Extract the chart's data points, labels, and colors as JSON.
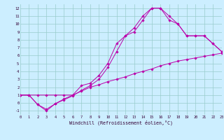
{
  "xlabel": "Windchill (Refroidissement éolien,°C)",
  "line1_x": [
    0,
    1,
    2,
    3,
    4,
    5,
    6,
    7,
    8,
    9,
    10,
    11,
    12,
    13,
    14,
    15,
    16,
    17,
    18,
    19,
    20,
    21,
    22,
    23
  ],
  "line1_y": [
    1,
    1,
    1,
    1,
    1,
    1,
    1,
    1.5,
    2,
    2.3,
    2.7,
    3,
    3.3,
    3.7,
    4,
    4.3,
    4.7,
    5,
    5.3,
    5.5,
    5.7,
    5.9,
    6.1,
    6.3
  ],
  "line2_x": [
    0,
    1,
    2,
    3,
    4,
    5,
    6,
    7,
    8,
    9,
    10,
    11,
    12,
    13,
    14,
    15,
    16,
    17,
    18,
    19,
    20,
    21,
    22,
    23
  ],
  "line2_y": [
    1,
    1,
    -0.2,
    -0.8,
    -0.1,
    0.4,
    0.9,
    1.6,
    2.2,
    3.0,
    4.5,
    6.5,
    8.5,
    9.0,
    10.5,
    12.0,
    12.0,
    10.5,
    10.0,
    8.5,
    8.5,
    8.5,
    7.5,
    6.5
  ],
  "line3_x": [
    0,
    1,
    2,
    3,
    4,
    5,
    6,
    7,
    8,
    9,
    10,
    11,
    12,
    13,
    14,
    15,
    16,
    17,
    18,
    19,
    20,
    21,
    22,
    23
  ],
  "line3_y": [
    1,
    1,
    -0.2,
    -1.0,
    -0.1,
    0.5,
    1.0,
    2.2,
    2.5,
    3.5,
    5.0,
    7.5,
    8.5,
    9.5,
    11.0,
    12.0,
    12.0,
    11.0,
    10.0,
    8.5,
    8.5,
    8.5,
    7.5,
    6.5
  ],
  "line_color": "#bb00aa",
  "bg_color": "#cceeff",
  "grid_color": "#99cccc",
  "xlim": [
    0,
    23
  ],
  "ylim": [
    -1.5,
    12.5
  ],
  "xticks": [
    0,
    1,
    2,
    3,
    4,
    5,
    6,
    7,
    8,
    9,
    10,
    11,
    12,
    13,
    14,
    15,
    16,
    17,
    18,
    19,
    20,
    21,
    22,
    23
  ],
  "yticks": [
    -1,
    0,
    1,
    2,
    3,
    4,
    5,
    6,
    7,
    8,
    9,
    10,
    11,
    12
  ]
}
